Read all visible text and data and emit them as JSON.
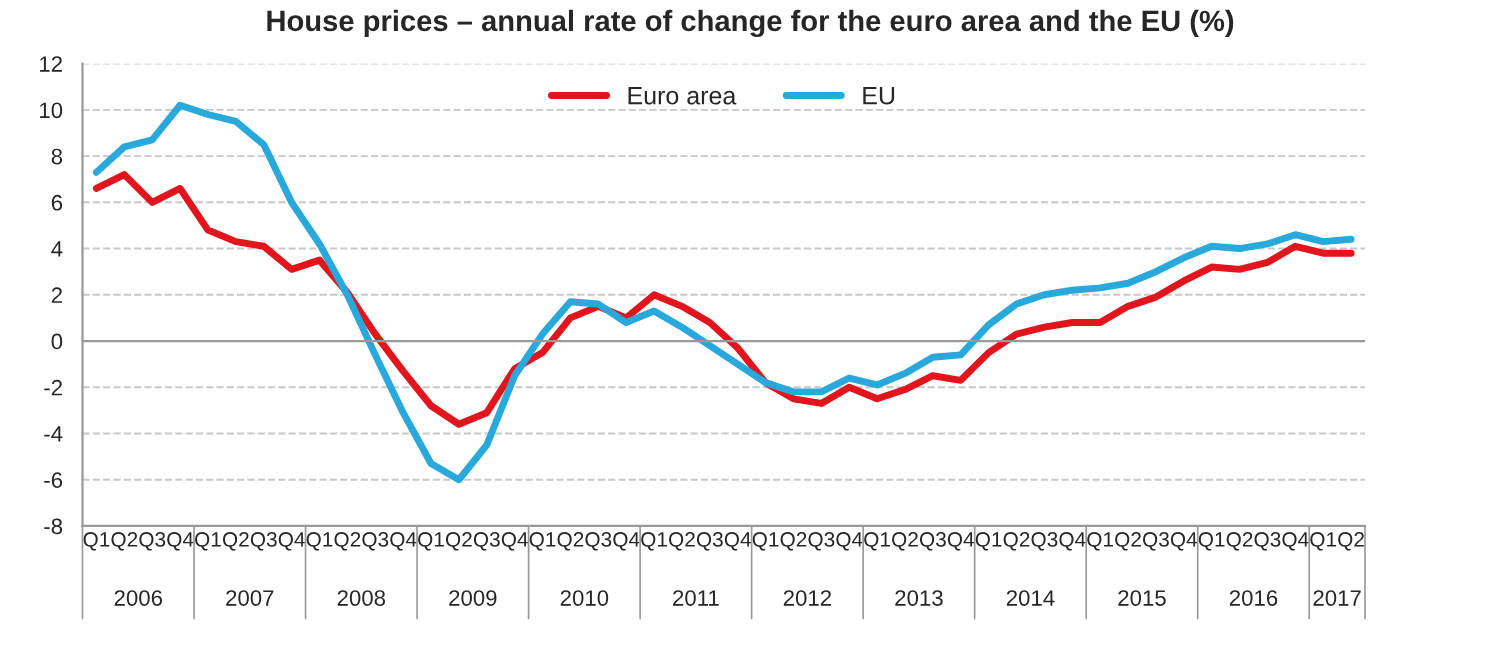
{
  "chart_data": {
    "type": "line",
    "title": "House prices – annual rate of change for the euro area and the EU (%)",
    "categories": [
      "Q1",
      "Q2",
      "Q3",
      "Q4",
      "Q1",
      "Q2",
      "Q3",
      "Q4",
      "Q1",
      "Q2",
      "Q3",
      "Q4",
      "Q1",
      "Q2",
      "Q3",
      "Q4",
      "Q1",
      "Q2",
      "Q3",
      "Q4",
      "Q1",
      "Q2",
      "Q3",
      "Q4",
      "Q1",
      "Q2",
      "Q3",
      "Q4",
      "Q1",
      "Q2",
      "Q3",
      "Q4",
      "Q1",
      "Q2",
      "Q3",
      "Q4",
      "Q1",
      "Q2",
      "Q3",
      "Q4",
      "Q1",
      "Q2",
      "Q3",
      "Q4",
      "Q1",
      "Q2"
    ],
    "annotations": [
      "2006",
      "2007",
      "2008",
      "2009",
      "2010",
      "2011",
      "2012",
      "2013",
      "2014",
      "2015",
      "2016",
      "2017"
    ],
    "series": [
      {
        "name": "Euro area",
        "color": "#e2141c",
        "values": [
          6.6,
          7.2,
          6.0,
          6.6,
          4.8,
          4.3,
          4.1,
          3.1,
          3.5,
          2.1,
          0.3,
          -1.3,
          -2.8,
          -3.6,
          -3.1,
          -1.2,
          -0.5,
          1.0,
          1.5,
          1.0,
          2.0,
          1.5,
          0.8,
          -0.3,
          -1.8,
          -2.5,
          -2.7,
          -2.0,
          -2.5,
          -2.1,
          -1.5,
          -1.7,
          -0.5,
          0.3,
          0.6,
          0.8,
          0.8,
          1.5,
          1.9,
          2.6,
          3.2,
          3.1,
          3.4,
          4.1,
          3.8,
          3.8
        ]
      },
      {
        "name": "EU",
        "color": "#29a8dc",
        "values": [
          7.3,
          8.4,
          8.7,
          10.2,
          9.8,
          9.5,
          8.5,
          6.0,
          4.2,
          2.0,
          -0.6,
          -3.1,
          -5.3,
          -6.0,
          -4.5,
          -1.5,
          0.3,
          1.7,
          1.6,
          0.8,
          1.3,
          0.6,
          -0.2,
          -1.0,
          -1.8,
          -2.2,
          -2.2,
          -1.6,
          -1.9,
          -1.4,
          -0.7,
          -0.6,
          0.7,
          1.6,
          2.0,
          2.2,
          2.3,
          2.5,
          3.0,
          3.6,
          4.1,
          4.0,
          4.2,
          4.6,
          4.3,
          4.4
        ]
      }
    ],
    "ylim": [
      -8,
      12
    ],
    "yticks": [
      -8,
      -6,
      -4,
      -2,
      0,
      2,
      4,
      6,
      8,
      10,
      12
    ],
    "grid": "y",
    "legend": "top",
    "marker": "none",
    "line_style": "solid"
  }
}
